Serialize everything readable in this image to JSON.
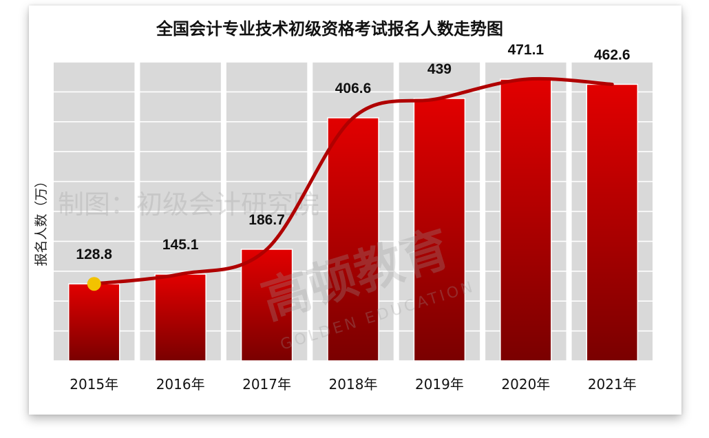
{
  "chart_data": {
    "type": "bar",
    "title": "全国会计专业技术初级资格考试报名人数走势图",
    "ylabel": "报名人数（万）",
    "xlabel": "",
    "categories": [
      "2015年",
      "2016年",
      "2017年",
      "2018年",
      "2019年",
      "2020年",
      "2021年"
    ],
    "values": [
      128.8,
      145.1,
      186.7,
      406.6,
      439,
      471.1,
      462.6
    ],
    "data_labels": [
      "128.8",
      "145.1",
      "186.7",
      "406.6",
      "439",
      "471.1",
      "462.6"
    ],
    "ylim": [
      0,
      500
    ],
    "grid": true,
    "trend_line": true,
    "colors": {
      "bar_top": "#e20000",
      "bar_bottom": "#7a0000",
      "panel": "#d9d9d9",
      "trend": "#b00000",
      "marker": "#f2c200"
    }
  },
  "watermark": {
    "line1": "制图：初级会计研究院",
    "line2": "高顿教育",
    "line3": "GOLDEN EDUCATION"
  }
}
